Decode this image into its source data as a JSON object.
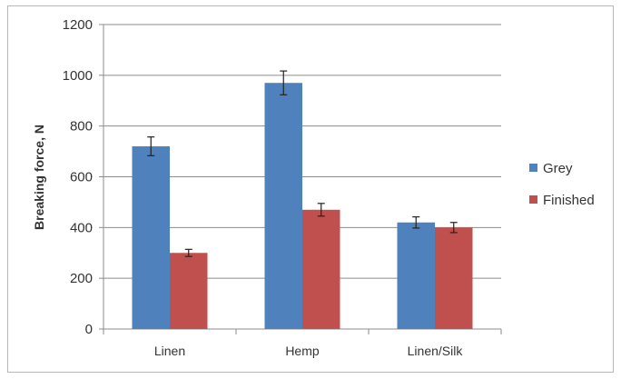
{
  "chart_data": {
    "type": "bar",
    "title": "",
    "xlabel": "",
    "ylabel": "Breaking force, N",
    "ylim": [
      0,
      1200
    ],
    "yticks": [
      0,
      200,
      400,
      600,
      800,
      1000,
      1200
    ],
    "grid": true,
    "legend_position": "right",
    "categories": [
      "Linen",
      "Hemp",
      "Linen/Silk"
    ],
    "series": [
      {
        "name": "Grey",
        "color": "#4f81bd",
        "values": [
          720,
          970,
          420
        ],
        "errors": [
          37,
          47,
          22
        ]
      },
      {
        "name": "Finished",
        "color": "#c0504d",
        "values": [
          300,
          470,
          400
        ],
        "errors": [
          14,
          25,
          20
        ]
      }
    ]
  }
}
